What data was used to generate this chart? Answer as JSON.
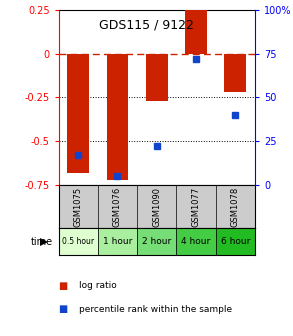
{
  "title": "GDS115 / 9122",
  "samples": [
    "GSM1075",
    "GSM1076",
    "GSM1090",
    "GSM1077",
    "GSM1078"
  ],
  "time_labels": [
    "0.5 hour",
    "1 hour",
    "2 hour",
    "4 hour",
    "6 hour"
  ],
  "time_colors": [
    "#dfffd0",
    "#aaeea0",
    "#77dd77",
    "#44cc44",
    "#22bb22"
  ],
  "log_ratio": [
    -0.68,
    -0.72,
    -0.27,
    0.25,
    -0.22
  ],
  "percentile": [
    17,
    5,
    22,
    72,
    40
  ],
  "ylim_left": [
    -0.75,
    0.25
  ],
  "ylim_right": [
    0,
    100
  ],
  "yticks_left": [
    0.25,
    0,
    -0.25,
    -0.5,
    -0.75
  ],
  "yticks_right": [
    100,
    75,
    50,
    25,
    0
  ],
  "bar_color": "#cc2200",
  "dot_color": "#1144cc",
  "background_color": "#ffffff",
  "sample_bg": "#cccccc",
  "bar_width": 0.55
}
